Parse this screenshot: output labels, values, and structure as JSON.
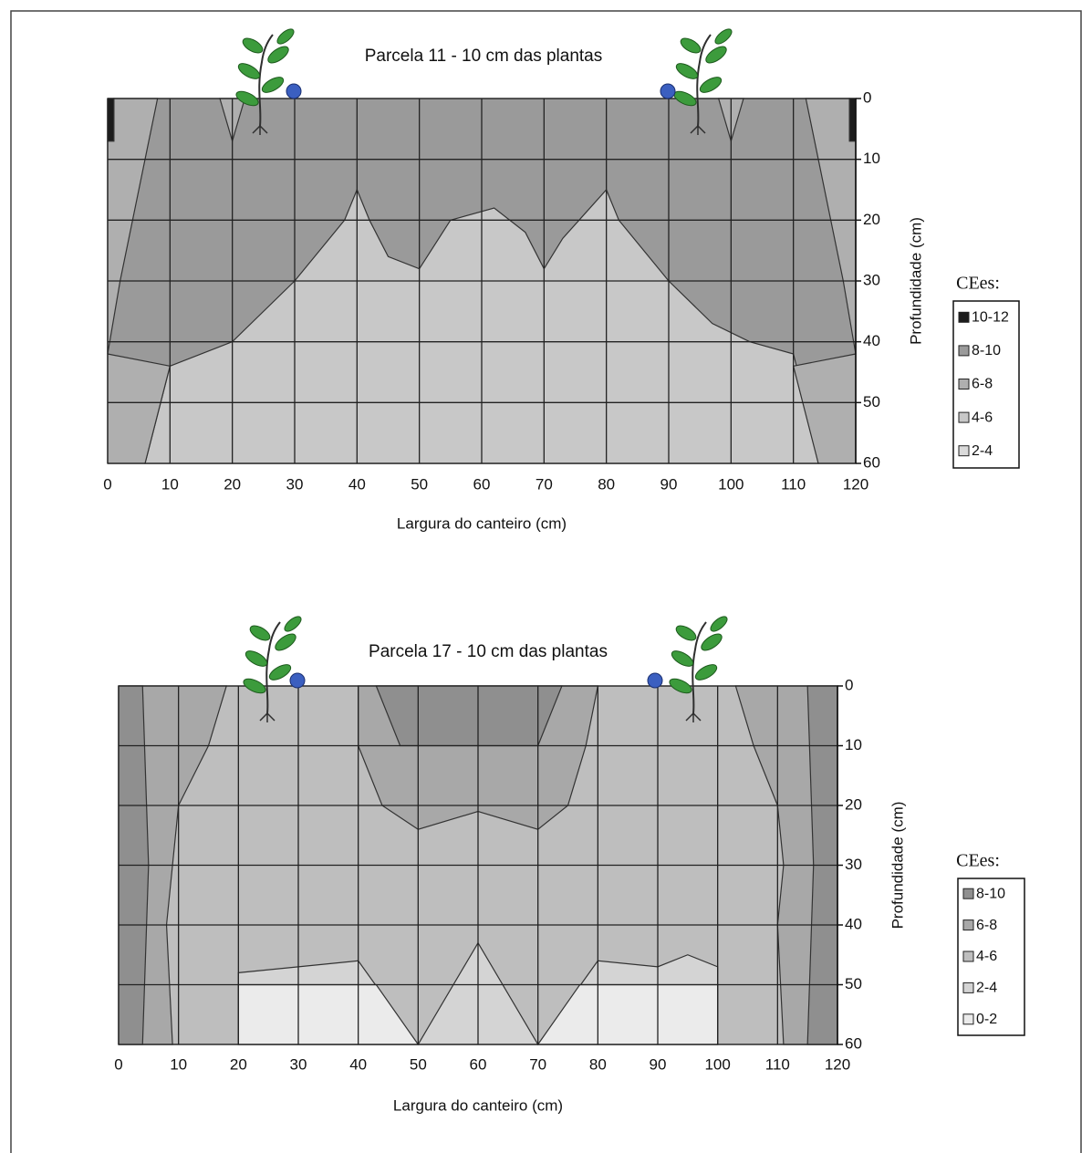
{
  "chart_data": [
    {
      "type": "contour",
      "title": "Parcela 11  - 10 cm das plantas",
      "xlabel": "Largura do canteiro (cm)",
      "ylabel": "Profundidade (cm)",
      "legend_title": "CEes:",
      "xlim": [
        0,
        120
      ],
      "ylim": [
        60,
        0
      ],
      "xticks": [
        0,
        10,
        20,
        30,
        40,
        50,
        60,
        70,
        80,
        90,
        100,
        110,
        120
      ],
      "yticks": [
        0,
        10,
        20,
        30,
        40,
        50,
        60
      ],
      "grid": true,
      "series": [
        {
          "name": "10-12",
          "color": "#1c1c1c",
          "regions": [
            {
              "x": [
                0,
                1,
                1,
                0
              ],
              "y": [
                0,
                0,
                7,
                7
              ]
            },
            {
              "x": [
                119,
                120,
                120,
                119
              ],
              "y": [
                0,
                0,
                7,
                7
              ]
            }
          ]
        },
        {
          "name": "8-10",
          "color": "#9a9a9a",
          "regions": [
            {
              "x": [
                0,
                120,
                120,
                0
              ],
              "y": [
                0,
                0,
                60,
                60
              ]
            }
          ]
        },
        {
          "name": "6-8",
          "color": "#afafaf",
          "regions": [
            {
              "x": [
                1,
                8,
                6,
                4,
                2,
                0,
                0,
                1
              ],
              "y": [
                0,
                0,
                10,
                20,
                30,
                42,
                7,
                7
              ]
            },
            {
              "x": [
                0,
                10,
                8,
                6,
                0
              ],
              "y": [
                42,
                44,
                52,
                60,
                60
              ]
            },
            {
              "x": [
                119,
                112,
                114,
                116,
                118,
                120,
                120,
                119
              ],
              "y": [
                0,
                0,
                10,
                20,
                30,
                42,
                7,
                7
              ]
            },
            {
              "x": [
                120,
                110,
                112,
                114,
                120
              ],
              "y": [
                42,
                44,
                52,
                60,
                60
              ]
            },
            {
              "x": [
                18,
                22,
                20
              ],
              "y": [
                0,
                0,
                7
              ]
            },
            {
              "x": [
                98,
                102,
                100
              ],
              "y": [
                0,
                0,
                7
              ]
            }
          ]
        },
        {
          "name": "4-6",
          "color": "#c8c8c8",
          "regions": [
            {
              "x": [
                6,
                10,
                20,
                30,
                38,
                40,
                42,
                45,
                50,
                55,
                62,
                67,
                70,
                73,
                80,
                82,
                90,
                97,
                103,
                110,
                112,
                114
              ],
              "y": [
                60,
                44,
                40,
                30,
                20,
                15,
                20,
                26,
                28,
                20,
                18,
                22,
                28,
                23,
                15,
                20,
                30,
                37,
                40,
                42,
                50,
                60
              ]
            }
          ]
        },
        {
          "name": "2-4",
          "color": "#dadada",
          "regions": []
        }
      ]
    },
    {
      "type": "contour",
      "title": "Parcela 17 - 10 cm das plantas",
      "xlabel": "Largura do canteiro (cm)",
      "ylabel": "Profundidade (cm)",
      "legend_title": "CEes:",
      "xlim": [
        0,
        120
      ],
      "ylim": [
        60,
        0
      ],
      "xticks": [
        0,
        10,
        20,
        30,
        40,
        50,
        60,
        70,
        80,
        90,
        100,
        110,
        120
      ],
      "yticks": [
        0,
        10,
        20,
        30,
        40,
        50,
        60
      ],
      "grid": true,
      "series": [
        {
          "name": "8-10",
          "color": "#8f8f8f",
          "regions": [
            {
              "x": [
                0,
                4,
                5,
                4,
                0
              ],
              "y": [
                0,
                0,
                30,
                60,
                60
              ]
            },
            {
              "x": [
                120,
                115,
                116,
                115,
                120
              ],
              "y": [
                0,
                0,
                30,
                60,
                60
              ]
            },
            {
              "x": [
                43,
                74,
                70,
                47
              ],
              "y": [
                0,
                0,
                10,
                10
              ]
            }
          ]
        },
        {
          "name": "6-8",
          "color": "#a8a8a8",
          "regions": [
            {
              "x": [
                0,
                18,
                15,
                10,
                9,
                8,
                9,
                0
              ],
              "y": [
                0,
                0,
                10,
                20,
                30,
                40,
                60,
                60
              ]
            },
            {
              "x": [
                120,
                103,
                106,
                110,
                111,
                110,
                111,
                120
              ],
              "y": [
                0,
                0,
                10,
                20,
                30,
                40,
                60,
                60
              ]
            },
            {
              "x": [
                40,
                80,
                78,
                75,
                70,
                60,
                50,
                44,
                40
              ],
              "y": [
                0,
                0,
                10,
                20,
                24,
                21,
                24,
                20,
                10
              ]
            }
          ]
        },
        {
          "name": "4-6",
          "color": "#bebebe",
          "regions": [
            {
              "x": [
                0,
                120,
                120,
                0
              ],
              "y": [
                0,
                0,
                60,
                60
              ]
            }
          ]
        },
        {
          "name": "2-4",
          "color": "#d4d4d4",
          "regions": [
            {
              "x": [
                20,
                30,
                40,
                50,
                60,
                70,
                80,
                90,
                95,
                100,
                100,
                20
              ],
              "y": [
                48,
                47,
                46,
                60,
                43,
                60,
                46,
                47,
                45,
                47,
                60,
                60
              ]
            }
          ]
        },
        {
          "name": "0-2",
          "color": "#ebebeb",
          "regions": [
            {
              "x": [
                20,
                43,
                50,
                20
              ],
              "y": [
                50,
                50,
                60,
                60
              ]
            },
            {
              "x": [
                70,
                77,
                100,
                100
              ],
              "y": [
                60,
                50,
                50,
                60
              ]
            }
          ]
        }
      ]
    }
  ]
}
